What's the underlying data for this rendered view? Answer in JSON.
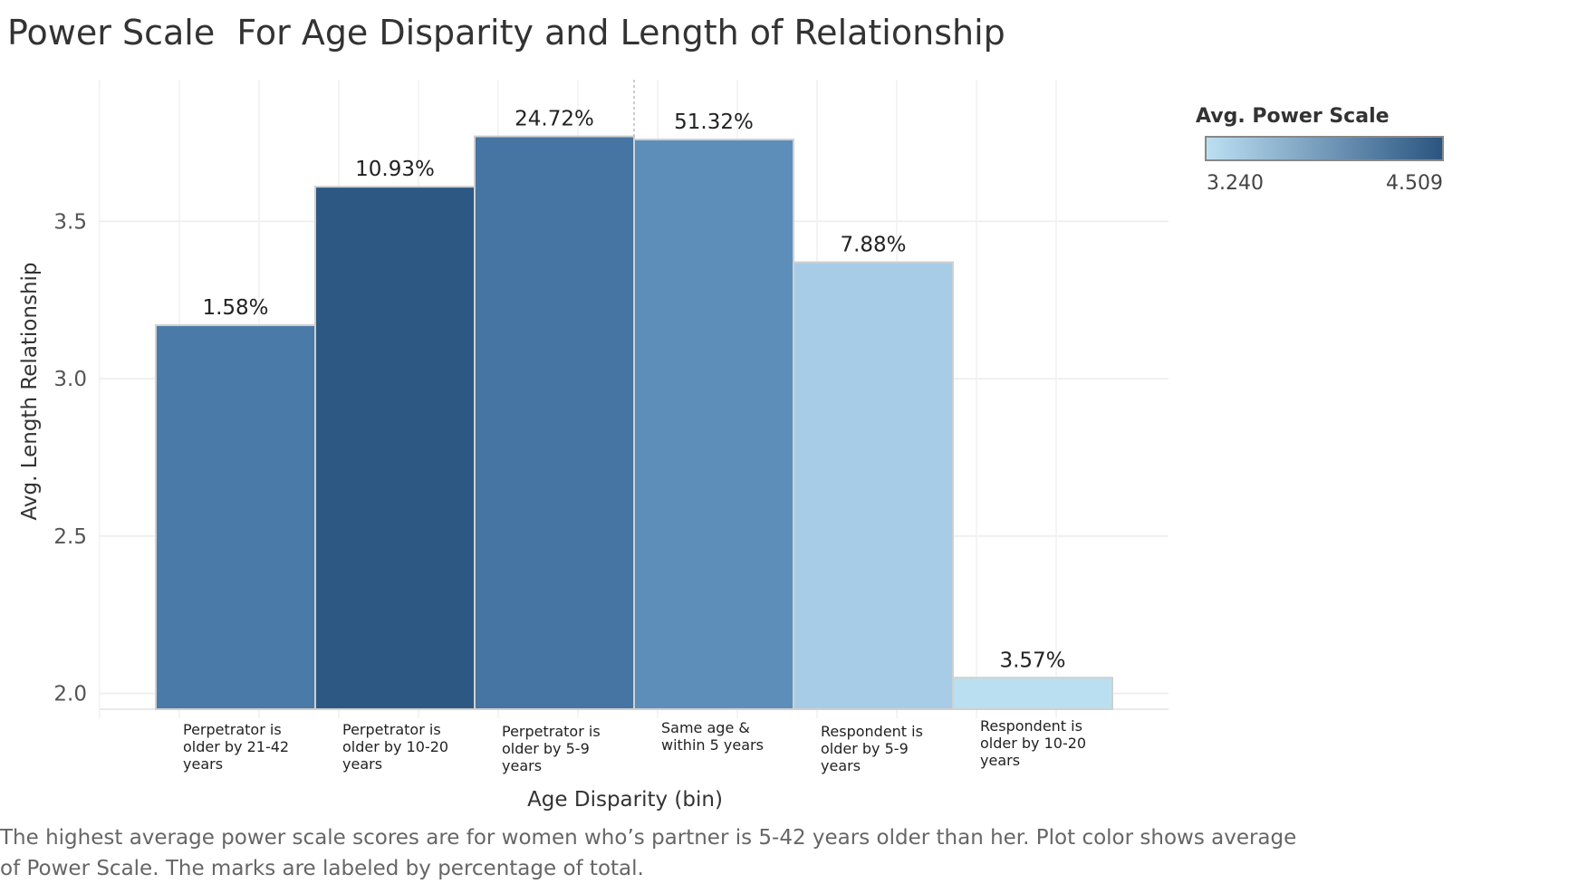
{
  "title": "Power Scale  For Age Disparity and Length of Relationship",
  "caption": "The highest average power scale scores are for women who’s partner is 5-42 years older than her. Plot color shows average of Power Scale. The marks are labeled by percentage of total.",
  "legend": {
    "title": "Avg. Power Scale",
    "min_label": "3.240",
    "max_label": "4.509",
    "min_color": "#bcdff2",
    "max_color": "#2b5580"
  },
  "chart_data": {
    "type": "bar",
    "title": "Power Scale  For Age Disparity and Length of Relationship",
    "xlabel": "Age Disparity (bin)",
    "ylabel": "Avg. Length Relationship",
    "ylim": [
      1.95,
      3.95
    ],
    "yticks": [
      2.0,
      2.5,
      3.0,
      3.5
    ],
    "ytick_labels": [
      "2.0",
      "2.5",
      "3.0",
      "3.5"
    ],
    "grid": true,
    "categories": [
      [
        "Perpetrator is",
        "older by 21-42",
        "years"
      ],
      [
        "Perpetrator is",
        "older by 10-20",
        "years"
      ],
      [
        "Perpetrator is",
        "older by 5-9",
        "years"
      ],
      [
        "Same age &",
        "within 5 years"
      ],
      [
        "Respondent is",
        "older by 5-9",
        "years"
      ],
      [
        "Respondent is",
        "older by 10-20",
        "years"
      ]
    ],
    "values": [
      3.17,
      3.61,
      3.77,
      3.76,
      3.37,
      2.05
    ],
    "data_labels": [
      "1.58%",
      "10.93%",
      "24.72%",
      "51.32%",
      "7.88%",
      "3.57%"
    ],
    "colors": [
      "#4a7aa8",
      "#2d5884",
      "#4674a3",
      "#5d8eb9",
      "#a7cce8",
      "#badff1"
    ]
  }
}
